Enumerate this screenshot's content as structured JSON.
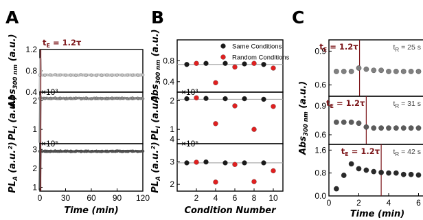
{
  "chart_data": [
    {
      "panel": "A",
      "type": "line",
      "annotation": "t_E = 1.2τ",
      "annotation_x": 1.2,
      "xlabel": "Time (min)",
      "xlim": [
        0,
        120
      ],
      "xticks": [
        "0",
        "30",
        "60",
        "90",
        "120"
      ],
      "subplots": [
        {
          "ylabel_main": "Abs",
          "ylabel_sub": "300 nm",
          "ylabel_unit": " (a.u.)",
          "ylim": [
            0.4,
            1.2
          ],
          "yticks": [
            "0.4",
            "0.8",
            "1.2"
          ],
          "color": "#c6c6c6",
          "spike_to": 1.02,
          "plateau": 0.72,
          "noise": 0.012
        },
        {
          "ylabel_main": "PL",
          "ylabel_sub": "I",
          "ylabel_unit": " (a.u.)",
          "multiplier": "×10³",
          "ylim": [
            0.5,
            2.3
          ],
          "yticks": [
            "1",
            "2"
          ],
          "color": "#8a8a8a",
          "spike_to": 2.15,
          "plateau": 2.08,
          "noise": 0.02
        },
        {
          "ylabel_main": "PL",
          "ylabel_sub": "A",
          "ylabel_unit": " (a.u.²)",
          "multiplier": "×10⁵",
          "ylim": [
            0.8,
            3.3
          ],
          "yticks": [
            "1",
            "2",
            "3"
          ],
          "color": "#505050",
          "spike_to": 2.95,
          "plateau": 2.9,
          "noise": 0.025
        }
      ]
    },
    {
      "panel": "B",
      "type": "scatter",
      "xlabel": "Condition Number",
      "xlim": [
        0,
        11
      ],
      "xticks": [
        2,
        4,
        6,
        8,
        10
      ],
      "legend": [
        {
          "name": "Same Conditions",
          "color": "#1a1a1a"
        },
        {
          "name": "Random Conditions",
          "color": "#e02020"
        }
      ],
      "x": [
        1,
        2,
        3,
        4,
        5,
        6,
        7,
        8,
        9,
        10
      ],
      "subplots": [
        {
          "ylabel_main": "Abs",
          "ylabel_sub": "300 nm",
          "ylabel_unit": " (a.u.)",
          "ylim": [
            0.2,
            1.2
          ],
          "yticks": [
            "0.4",
            "0.8"
          ],
          "refline": 0.73,
          "values": [
            0.73,
            0.75,
            0.75,
            0.38,
            0.75,
            0.68,
            0.74,
            0.75,
            0.73,
            0.66
          ]
        },
        {
          "ylabel_main": "PL",
          "ylabel_sub": "I",
          "ylabel_unit": " (a.u.)",
          "multiplier": "×10³",
          "ylim": [
            0.5,
            2.3
          ],
          "yticks": [
            "1",
            "2"
          ],
          "refline": 2.05,
          "values": [
            2.07,
            2.1,
            2.08,
            1.2,
            2.07,
            1.82,
            2.07,
            1.0,
            2.05,
            1.8
          ]
        },
        {
          "ylabel_main": "PL",
          "ylabel_sub": "A",
          "ylabel_unit": " (a.u.²)",
          "multiplier": "×10⁵",
          "ylim": [
            1.7,
            3.8
          ],
          "yticks": [
            "2",
            "3",
            "4"
          ],
          "refline": 2.95,
          "values": [
            2.95,
            2.98,
            2.99,
            2.1,
            2.95,
            2.88,
            2.95,
            2.12,
            2.95,
            2.6
          ]
        }
      ]
    },
    {
      "panel": "C",
      "type": "scatter",
      "xlabel": "Time (min)",
      "xlim": [
        0,
        6.3
      ],
      "xticks": [
        0,
        2,
        4,
        6
      ],
      "ylabel_main": "Abs",
      "ylabel_sub": "300 nm",
      "ylabel_unit": " (a.u.)",
      "subplots": [
        {
          "annotation": "t_E = 1.2τ",
          "annotation_x": 2.05,
          "tr_label": "t_R = 25 s",
          "ylim": [
            0.5,
            1.0
          ],
          "yticks": [
            "0.6",
            "0.9"
          ],
          "x": [
            0.5,
            1.0,
            1.5,
            2.0,
            2.5,
            3.0,
            3.5,
            4.0,
            4.5,
            5.0,
            5.5,
            6.0
          ],
          "values": [
            0.72,
            0.72,
            0.72,
            0.75,
            0.74,
            0.73,
            0.73,
            0.72,
            0.72,
            0.72,
            0.72,
            0.72
          ],
          "color": "#808080"
        },
        {
          "annotation": "t_E = 1.2τ",
          "annotation_x": 2.5,
          "tr_label": "t_R = 31 s",
          "ylim": [
            0.5,
            1.0
          ],
          "yticks": [
            "0.6",
            "0.9"
          ],
          "x": [
            0.5,
            1.0,
            1.5,
            2.0,
            2.5,
            3.0,
            3.5,
            4.0,
            4.5,
            5.0,
            5.5,
            6.0
          ],
          "values": [
            0.73,
            0.73,
            0.73,
            0.72,
            0.68,
            0.67,
            0.67,
            0.67,
            0.67,
            0.67,
            0.67,
            0.67
          ],
          "color": "#5c5c5c"
        },
        {
          "annotation": "t_E = 1.2τ",
          "annotation_x": 3.5,
          "tr_label": "t_R = 42 s",
          "ylim": [
            0.0,
            1.8
          ],
          "yticks": [
            "0.0",
            "0.8",
            "1.6"
          ],
          "x": [
            0.5,
            1.0,
            1.5,
            2.0,
            2.5,
            3.0,
            3.5,
            4.0,
            4.5,
            5.0,
            5.5,
            6.0
          ],
          "values": [
            0.25,
            0.72,
            1.12,
            0.95,
            0.9,
            0.85,
            0.82,
            0.8,
            0.8,
            0.75,
            0.75,
            0.73
          ],
          "color": "#2a2a2a"
        }
      ]
    }
  ]
}
